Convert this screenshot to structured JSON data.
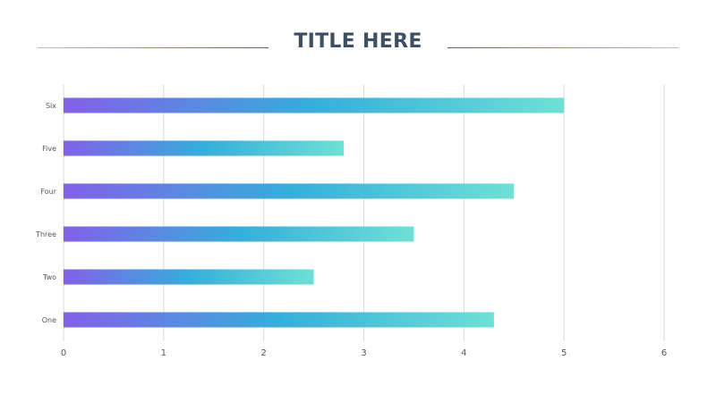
{
  "title": "TITLE HERE",
  "colors": {
    "bar_start": "#8360e8",
    "bar_mid": "#35aedc",
    "bar_end": "#6ee0d6",
    "grid": "#d9d9d9",
    "title": "#3d4f66",
    "rule_light": "#6fe3d8",
    "rule_dark": "#2b6cc4"
  },
  "chart_data": {
    "type": "bar",
    "orientation": "horizontal",
    "categories": [
      "One",
      "Two",
      "Three",
      "Four",
      "Five",
      "Six"
    ],
    "values": [
      4.3,
      2.5,
      3.5,
      4.5,
      2.8,
      5
    ],
    "xlim": [
      0,
      6
    ],
    "xticks": [
      0,
      1,
      2,
      3,
      4,
      5,
      6
    ],
    "grid": true,
    "legend": "none"
  }
}
